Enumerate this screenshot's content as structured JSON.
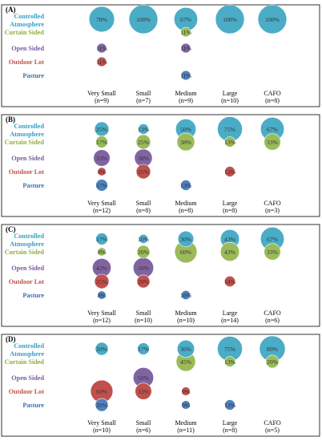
{
  "chart_data": [
    {
      "type": "scatter",
      "panel": "(A)",
      "categories": [
        "Very Small",
        "Small",
        "Medium",
        "Large",
        "CAFO"
      ],
      "n": [
        "(n=9)",
        "(n=7)",
        "(n=9)",
        "(n=10)",
        "(n=8)"
      ],
      "series": [
        {
          "name": "Controlled Atmosphere",
          "values": [
            78,
            100,
            67,
            100,
            100
          ]
        },
        {
          "name": "Curtain Sided",
          "values": [
            null,
            null,
            11,
            null,
            null
          ]
        },
        {
          "name": "Open Sided",
          "values": [
            11,
            null,
            11,
            null,
            null
          ]
        },
        {
          "name": "Outdoor Lot",
          "values": [
            11,
            null,
            null,
            null,
            null
          ]
        },
        {
          "name": "Pasture",
          "values": [
            null,
            null,
            11,
            null,
            null
          ]
        }
      ]
    },
    {
      "type": "scatter",
      "panel": "(B)",
      "categories": [
        "Very Small",
        "Small",
        "Medium",
        "Large",
        "CAFO"
      ],
      "n": [
        "(n=12)",
        "(n=8)",
        "(n=8)",
        "(n=8)",
        "(n=3)"
      ],
      "series": [
        {
          "name": "Controlled Atmosphere",
          "values": [
            25,
            13,
            50,
            75,
            67
          ]
        },
        {
          "name": "Curtain Sided",
          "values": [
            17,
            25,
            38,
            13,
            33
          ]
        },
        {
          "name": "Open Sided",
          "values": [
            33,
            38,
            null,
            null,
            null
          ]
        },
        {
          "name": "Outdoor Lot",
          "values": [
            8,
            25,
            null,
            13,
            null
          ]
        },
        {
          "name": "Pasture",
          "values": [
            17,
            null,
            13,
            null,
            null
          ]
        }
      ]
    },
    {
      "type": "scatter",
      "panel": "(C)",
      "categories": [
        "Very Small",
        "Small",
        "Medium",
        "Large",
        "CAFO"
      ],
      "n": [
        "(n=12)",
        "(n=10)",
        "(n=10)",
        "(n=14)",
        "(n=6)"
      ],
      "series": [
        {
          "name": "Controlled Atmosphere",
          "values": [
            17,
            10,
            30,
            43,
            67
          ]
        },
        {
          "name": "Curtain Sided",
          "values": [
            8,
            20,
            60,
            43,
            33
          ]
        },
        {
          "name": "Open Sided",
          "values": [
            42,
            50,
            null,
            null,
            null
          ]
        },
        {
          "name": "Outdoor Lot",
          "values": [
            25,
            20,
            null,
            14,
            null
          ]
        },
        {
          "name": "Pasture",
          "values": [
            8,
            null,
            10,
            null,
            null
          ]
        }
      ]
    },
    {
      "type": "scatter",
      "panel": "(D)",
      "categories": [
        "Very Small",
        "Small",
        "Medium",
        "Large",
        "CAFO"
      ],
      "n": [
        "(n=10)",
        "(n=6)",
        "(n=11)",
        "(n=8)",
        "(n=5)"
      ],
      "series": [
        {
          "name": "Controlled Atmosphere",
          "values": [
            20,
            17,
            36,
            75,
            80
          ]
        },
        {
          "name": "Curtain Sided",
          "values": [
            null,
            null,
            45,
            13,
            20
          ]
        },
        {
          "name": "Open Sided",
          "values": [
            null,
            50,
            null,
            null,
            null
          ]
        },
        {
          "name": "Outdoor Lot",
          "values": [
            60,
            33,
            9,
            null,
            null
          ]
        },
        {
          "name": "Pasture",
          "values": [
            20,
            null,
            9,
            13,
            null
          ]
        }
      ]
    }
  ],
  "row_labels": [
    {
      "lines": [
        "Controlled",
        "Atmosphere"
      ]
    },
    {
      "lines": [
        "Curtain Sided"
      ]
    },
    {
      "lines": [
        "Open Sided"
      ]
    },
    {
      "lines": [
        "Outdoor Lot"
      ]
    },
    {
      "lines": [
        "Pasture"
      ]
    }
  ],
  "colors": {
    "Controlled Atmosphere": "#4bacc6",
    "Curtain Sided": "#9bbb59",
    "Open Sided": "#8064a2",
    "Outdoor Lot": "#c0504d",
    "Pasture": "#4f81bd"
  },
  "row_label_colors": [
    "#2fa0c8",
    "#8db03c",
    "#7a5a9e",
    "#c0504d",
    "#3a6fb5"
  ],
  "value_suffix": "%"
}
